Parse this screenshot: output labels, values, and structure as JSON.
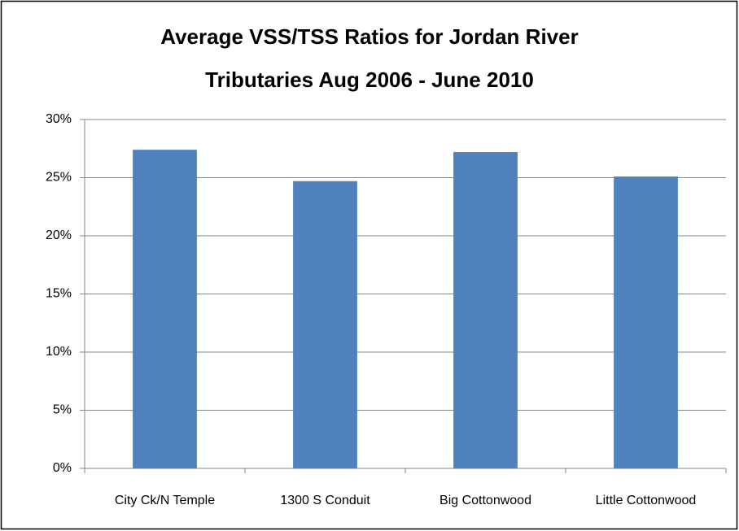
{
  "chart_data": {
    "type": "bar",
    "title": [
      "Average VSS/TSS Ratios for Jordan River",
      "Tributaries Aug 2006 - June 2010"
    ],
    "categories": [
      "City Ck/N Temple",
      "1300 S Conduit",
      "Big Cottonwood",
      "Little Cottonwood"
    ],
    "values": [
      27.4,
      24.7,
      27.2,
      25.1
    ],
    "color": "#4f81bd",
    "ylim": [
      0,
      30
    ],
    "yticks": [
      {
        "value": 0,
        "label": "0%"
      },
      {
        "value": 5,
        "label": "5%"
      },
      {
        "value": 10,
        "label": "10%"
      },
      {
        "value": 15,
        "label": "15%"
      },
      {
        "value": 20,
        "label": "20%"
      },
      {
        "value": 25,
        "label": "25%"
      },
      {
        "value": 30,
        "label": "30%"
      }
    ],
    "grid": true
  }
}
